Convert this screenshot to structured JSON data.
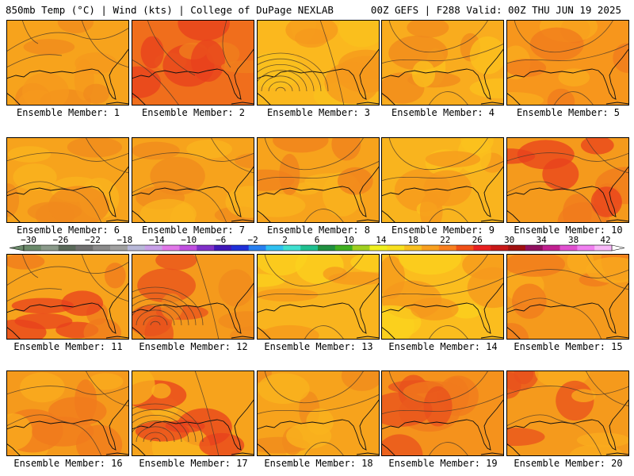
{
  "header": {
    "left": "850mb Temp (°C) | Wind (kts) | College of DuPage NEXLAB",
    "right": "00Z GEFS | F288 Valid: 00Z THU JUN 19 2025"
  },
  "panels": [
    {
      "label": "Ensemble Member: 1",
      "base": "#f7a31c",
      "hot": [
        "#f08a1c",
        "#f5981c"
      ],
      "contours": "circles-n"
    },
    {
      "label": "Ensemble Member: 2",
      "base": "#f06e1c",
      "hot": [
        "#e8401c",
        "#f0801c"
      ],
      "contours": "ne"
    },
    {
      "label": "Ensemble Member: 3",
      "base": "#fbb81e",
      "hot": [
        "#f5981c",
        "#f9c21e"
      ],
      "contours": "low-sw"
    },
    {
      "label": "Ensemble Member: 4",
      "base": "#f9ac1e",
      "hot": [
        "#f08a1c",
        "#fbc21e"
      ],
      "contours": "arc"
    },
    {
      "label": "Ensemble Member: 5",
      "base": "#f7961c",
      "hot": [
        "#f07a1c",
        "#f9ac1e"
      ],
      "contours": "arc"
    },
    {
      "label": "Ensemble Member: 6",
      "base": "#f7a31c",
      "hot": [
        "#f08a1c",
        "#f9b41e"
      ],
      "contours": "ridge"
    },
    {
      "label": "Ensemble Member: 7",
      "base": "#f7a31c",
      "hot": [
        "#f08a1c",
        "#f9b41e"
      ],
      "contours": "ridge"
    },
    {
      "label": "Ensemble Member: 8",
      "base": "#f7a31c",
      "hot": [
        "#f0801c",
        "#f9b41e"
      ],
      "contours": "arc"
    },
    {
      "label": "Ensemble Member: 9",
      "base": "#f9b41e",
      "hot": [
        "#f5981c",
        "#fbc21e"
      ],
      "contours": "arc"
    },
    {
      "label": "Ensemble Member: 10",
      "base": "#f59a1c",
      "hot": [
        "#e8401c",
        "#f07a1c"
      ],
      "contours": "ridge"
    },
    {
      "label": "Ensemble Member: 11",
      "base": "#f7a31c",
      "hot": [
        "#e8401c",
        "#f07a1c"
      ],
      "contours": "circles-n"
    },
    {
      "label": "Ensemble Member: 12",
      "base": "#f59a1c",
      "hot": [
        "#e8501c",
        "#f08a1c"
      ],
      "contours": "low-sw"
    },
    {
      "label": "Ensemble Member: 13",
      "base": "#f9b41e",
      "hot": [
        "#f5981c",
        "#fbd21e"
      ],
      "contours": "arc"
    },
    {
      "label": "Ensemble Member: 14",
      "base": "#fbbd1e",
      "hot": [
        "#f5981c",
        "#fbd21e"
      ],
      "contours": "arc"
    },
    {
      "label": "Ensemble Member: 15",
      "base": "#f59a1c",
      "hot": [
        "#f07a1c",
        "#f9ac1e"
      ],
      "contours": "ridge"
    },
    {
      "label": "Ensemble Member: 16",
      "base": "#f59a1c",
      "hot": [
        "#f07a1c",
        "#f9ac1e"
      ],
      "contours": "ridge"
    },
    {
      "label": "Ensemble Member: 17",
      "base": "#f7a31c",
      "hot": [
        "#e8401c",
        "#f9b41e"
      ],
      "contours": "low-sw"
    },
    {
      "label": "Ensemble Member: 18",
      "base": "#f7a31c",
      "hot": [
        "#f08a1c",
        "#f9b41e"
      ],
      "contours": "arc"
    },
    {
      "label": "Ensemble Member: 19",
      "base": "#f5921c",
      "hot": [
        "#e8501c",
        "#f07a1c"
      ],
      "contours": "arc"
    },
    {
      "label": "Ensemble Member: 20",
      "base": "#f59a1c",
      "hot": [
        "#e8501c",
        "#f9ac1e"
      ],
      "contours": "ridge"
    }
  ],
  "colorbar": {
    "labels": [
      "−30",
      "−26",
      "−22",
      "−18",
      "−14",
      "−10",
      "−6",
      "−2",
      "2",
      "6",
      "10",
      "14",
      "18",
      "22",
      "26",
      "30",
      "34",
      "38",
      "42"
    ],
    "colors": [
      "#6b8a6b",
      "#8a9a8a",
      "#5a6a5a",
      "#707070",
      "#8a8a8a",
      "#a0a0a0",
      "#b8b8d8",
      "#c8a0e8",
      "#e078e8",
      "#c050e0",
      "#8030c8",
      "#4018b8",
      "#2030d8",
      "#2880f0",
      "#30c0f0",
      "#40e0d0",
      "#20c090",
      "#209040",
      "#40b020",
      "#a0d020",
      "#f0f020",
      "#f8e020",
      "#f8c020",
      "#f8a020",
      "#f88020",
      "#f05018",
      "#e82020",
      "#c81818",
      "#a01010",
      "#901060",
      "#c02090",
      "#e050d0",
      "#f080f0",
      "#f8b8f8"
    ]
  }
}
